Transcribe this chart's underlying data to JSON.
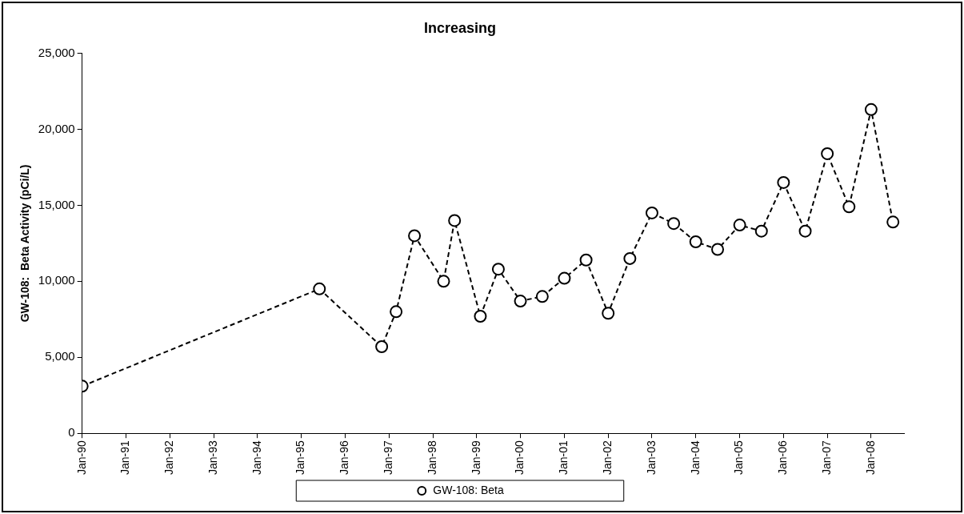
{
  "chart_data": {
    "type": "line",
    "title": "Increasing",
    "ylabel": "GW-108:  Beta Activity (pCi/L)",
    "series": [
      {
        "name": "GW-108: Beta",
        "color": "#000000",
        "x": [
          "1990-01",
          "1995-06",
          "1996-11",
          "1997-03",
          "1997-08",
          "1998-04",
          "1998-07",
          "1999-02",
          "1999-07",
          "2000-01",
          "2000-07",
          "2001-01",
          "2001-07",
          "2002-01",
          "2002-07",
          "2003-01",
          "2003-07",
          "2004-01",
          "2004-07",
          "2005-01",
          "2005-07",
          "2006-01",
          "2006-07",
          "2007-01",
          "2007-07",
          "2008-01",
          "2008-07"
        ],
        "values": [
          3100,
          9500,
          5700,
          8000,
          13000,
          10000,
          14000,
          7700,
          10800,
          8700,
          9000,
          10200,
          11400,
          7900,
          11500,
          14500,
          13800,
          12600,
          12100,
          13700,
          13300,
          16500,
          13300,
          18400,
          14900,
          21300,
          13900
        ]
      }
    ],
    "xlim": [
      "1990-01",
      "2008-10"
    ],
    "xticks": [
      {
        "value": "1990-01",
        "label": "Jan-90"
      },
      {
        "value": "1991-01",
        "label": "Jan-91"
      },
      {
        "value": "1992-01",
        "label": "Jan-92"
      },
      {
        "value": "1993-01",
        "label": "Jan-93"
      },
      {
        "value": "1994-01",
        "label": "Jan-94"
      },
      {
        "value": "1995-01",
        "label": "Jan-95"
      },
      {
        "value": "1996-01",
        "label": "Jan-96"
      },
      {
        "value": "1997-01",
        "label": "Jan-97"
      },
      {
        "value": "1998-01",
        "label": "Jan-98"
      },
      {
        "value": "1999-01",
        "label": "Jan-99"
      },
      {
        "value": "2000-01",
        "label": "Jan-00"
      },
      {
        "value": "2001-01",
        "label": "Jan-01"
      },
      {
        "value": "2002-01",
        "label": "Jan-02"
      },
      {
        "value": "2003-01",
        "label": "Jan-03"
      },
      {
        "value": "2004-01",
        "label": "Jan-04"
      },
      {
        "value": "2005-01",
        "label": "Jan-05"
      },
      {
        "value": "2006-01",
        "label": "Jan-06"
      },
      {
        "value": "2007-01",
        "label": "Jan-07"
      },
      {
        "value": "2008-01",
        "label": "Jan-08"
      }
    ],
    "ylim": [
      0,
      25000
    ],
    "yticks": [
      0,
      {
        "value": 5000,
        "label": "5,000"
      },
      {
        "value": 10000,
        "label": "10,000"
      },
      {
        "value": 15000,
        "label": "15,000"
      },
      {
        "value": 20000,
        "label": "20,000"
      },
      {
        "value": 25000,
        "label": "25,000"
      }
    ],
    "grid": false,
    "legend": "bottom",
    "marker": "circle",
    "line_style": "dashed"
  }
}
